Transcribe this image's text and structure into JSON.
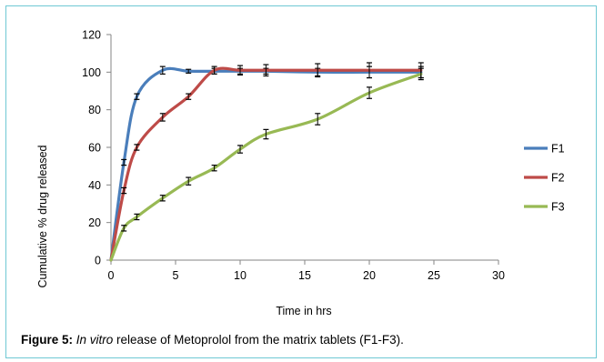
{
  "chart_data": {
    "type": "line",
    "title": "",
    "xlabel": "Time in hrs",
    "ylabel": "Cumulative % drug released",
    "xlim": [
      0,
      30
    ],
    "ylim": [
      0,
      120
    ],
    "xticks": [
      0,
      5,
      10,
      15,
      20,
      25,
      30
    ],
    "yticks": [
      0,
      20,
      40,
      60,
      80,
      100,
      120
    ],
    "grid": false,
    "legend": "right",
    "series": [
      {
        "name": "F1",
        "color": "#4a7ebb",
        "x": [
          0,
          1,
          2,
          4,
          6,
          8,
          10,
          12,
          16,
          20,
          24
        ],
        "values": [
          0,
          52,
          87,
          101,
          100.5,
          100.5,
          100.5,
          100.5,
          100,
          100,
          100
        ],
        "errors": [
          0,
          1.5,
          1.5,
          2,
          1,
          1.5,
          1.5,
          1.5,
          2,
          3,
          3
        ]
      },
      {
        "name": "F2",
        "color": "#be4b48",
        "x": [
          0,
          1,
          2,
          4,
          6,
          8,
          10,
          12,
          16,
          20,
          24
        ],
        "values": [
          0,
          37,
          60,
          76,
          87,
          101,
          101,
          101,
          101,
          101,
          101
        ],
        "errors": [
          0,
          1.5,
          1.5,
          2,
          1.5,
          2,
          2.5,
          3,
          3.5,
          4,
          4
        ]
      },
      {
        "name": "F3",
        "color": "#98b954",
        "x": [
          0,
          1,
          2,
          4,
          6,
          8,
          10,
          12,
          16,
          20,
          24
        ],
        "values": [
          0,
          17,
          23,
          33,
          42,
          49,
          59,
          67,
          75,
          89,
          99
        ],
        "errors": [
          0,
          1.5,
          1.5,
          1.5,
          2,
          1.5,
          2,
          2.5,
          3,
          3,
          3
        ]
      }
    ]
  },
  "caption": {
    "label": "Figure 5:",
    "italic": "In vitro",
    "rest": " release of Metoprolol from the matrix tablets (F1-F3)."
  }
}
